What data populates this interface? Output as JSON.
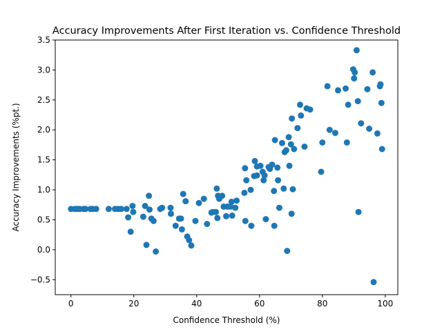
{
  "chart_data": {
    "type": "scatter",
    "title": "Accuracy Improvements After First Iteration vs. Confidence Threshold",
    "xlabel": "Confidence Threshold (%)",
    "ylabel": "Accuracy Improvements (%pt.)",
    "xlim": [
      -5,
      104
    ],
    "ylim": [
      -0.75,
      3.5
    ],
    "xticks": [
      0,
      20,
      40,
      60,
      80,
      100
    ],
    "yticks": [
      -0.5,
      0.0,
      0.5,
      1.0,
      1.5,
      2.0,
      2.5,
      3.0,
      3.5
    ],
    "xtick_labels": [
      "0",
      "20",
      "40",
      "60",
      "80",
      "100"
    ],
    "ytick_labels": [
      "−0.5",
      "0.0",
      "0.5",
      "1.0",
      "1.5",
      "2.0",
      "2.5",
      "3.0",
      "3.5"
    ],
    "grid": false,
    "legend": "none",
    "marker_color": "#1f77b4",
    "points": [
      [
        0.0,
        0.68
      ],
      [
        1.2,
        0.68
      ],
      [
        2.0,
        0.68
      ],
      [
        2.8,
        0.68
      ],
      [
        4.0,
        0.68
      ],
      [
        4.6,
        0.68
      ],
      [
        6.2,
        0.68
      ],
      [
        7.0,
        0.68
      ],
      [
        8.0,
        0.68
      ],
      [
        12.0,
        0.68
      ],
      [
        14.0,
        0.68
      ],
      [
        15.0,
        0.68
      ],
      [
        16.0,
        0.68
      ],
      [
        17.7,
        0.68
      ],
      [
        18.2,
        0.54
      ],
      [
        19.0,
        0.3
      ],
      [
        19.6,
        0.73
      ],
      [
        19.8,
        0.63
      ],
      [
        23.0,
        0.55
      ],
      [
        23.6,
        0.73
      ],
      [
        24.0,
        0.08
      ],
      [
        24.8,
        0.9
      ],
      [
        25.0,
        0.67
      ],
      [
        25.6,
        0.52
      ],
      [
        26.3,
        0.48
      ],
      [
        27.0,
        -0.03
      ],
      [
        28.4,
        0.68
      ],
      [
        29.0,
        0.7
      ],
      [
        31.7,
        0.7
      ],
      [
        31.8,
        0.6
      ],
      [
        33.3,
        0.4
      ],
      [
        34.4,
        0.52
      ],
      [
        35.0,
        0.52
      ],
      [
        35.3,
        0.34
      ],
      [
        35.7,
        0.93
      ],
      [
        36.5,
        0.81
      ],
      [
        37.0,
        0.22
      ],
      [
        37.6,
        0.16
      ],
      [
        38.3,
        0.07
      ],
      [
        39.6,
        0.48
      ],
      [
        40.7,
        0.78
      ],
      [
        42.3,
        0.85
      ],
      [
        43.3,
        0.43
      ],
      [
        44.7,
        0.62
      ],
      [
        45.1,
        0.63
      ],
      [
        46.1,
        0.63
      ],
      [
        46.4,
        1.02
      ],
      [
        46.6,
        0.53
      ],
      [
        46.8,
        0.9
      ],
      [
        47.2,
        0.85
      ],
      [
        48.1,
        0.9
      ],
      [
        48.6,
        0.72
      ],
      [
        49.4,
        0.56
      ],
      [
        49.8,
        0.72
      ],
      [
        50.8,
        0.72
      ],
      [
        51.1,
        0.8
      ],
      [
        51.3,
        0.57
      ],
      [
        52.3,
        0.7
      ],
      [
        52.7,
        0.82
      ],
      [
        55.2,
        0.95
      ],
      [
        55.4,
        1.36
      ],
      [
        55.5,
        0.48
      ],
      [
        55.8,
        1.16
      ],
      [
        57.2,
        1.0
      ],
      [
        57.4,
        0.4
      ],
      [
        58.3,
        1.23
      ],
      [
        58.5,
        1.48
      ],
      [
        59.2,
        1.39
      ],
      [
        59.2,
        1.24
      ],
      [
        60.3,
        1.4
      ],
      [
        61.0,
        1.3
      ],
      [
        61.3,
        1.16
      ],
      [
        61.6,
        1.24
      ],
      [
        62.0,
        0.51
      ],
      [
        62.9,
        1.38
      ],
      [
        63.3,
        1.35
      ],
      [
        64.0,
        1.42
      ],
      [
        64.6,
        0.98
      ],
      [
        64.7,
        0.4
      ],
      [
        64.9,
        1.83
      ],
      [
        65.7,
        1.37
      ],
      [
        65.9,
        1.16
      ],
      [
        66.3,
        0.7
      ],
      [
        67.2,
        1.78
      ],
      [
        67.7,
        1.02
      ],
      [
        68.0,
        1.63
      ],
      [
        68.5,
        1.66
      ],
      [
        68.8,
        -0.02
      ],
      [
        69.3,
        1.88
      ],
      [
        69.5,
        1.4
      ],
      [
        70.0,
        1.76
      ],
      [
        70.2,
        0.6
      ],
      [
        70.3,
        2.19
      ],
      [
        70.6,
        1.01
      ],
      [
        71.0,
        1.68
      ],
      [
        72.1,
        2.03
      ],
      [
        72.9,
        2.42
      ],
      [
        73.2,
        2.24
      ],
      [
        74.3,
        1.72
      ],
      [
        75.0,
        2.36
      ],
      [
        76.1,
        2.34
      ],
      [
        79.6,
        1.3
      ],
      [
        80.0,
        1.79
      ],
      [
        81.6,
        2.73
      ],
      [
        82.3,
        2.0
      ],
      [
        84.1,
        1.95
      ],
      [
        85.0,
        2.66
      ],
      [
        87.4,
        2.69
      ],
      [
        87.8,
        1.79
      ],
      [
        88.2,
        2.42
      ],
      [
        89.8,
        3.01
      ],
      [
        90.1,
        2.86
      ],
      [
        90.3,
        2.96
      ],
      [
        90.9,
        3.33
      ],
      [
        91.3,
        2.48
      ],
      [
        91.5,
        0.63
      ],
      [
        92.3,
        2.11
      ],
      [
        94.3,
        2.68
      ],
      [
        94.9,
        2.02
      ],
      [
        96.0,
        2.96
      ],
      [
        96.3,
        -0.54
      ],
      [
        97.5,
        1.94
      ],
      [
        98.3,
        2.73
      ],
      [
        98.5,
        2.76
      ],
      [
        98.8,
        2.45
      ],
      [
        99.0,
        1.68
      ]
    ]
  }
}
